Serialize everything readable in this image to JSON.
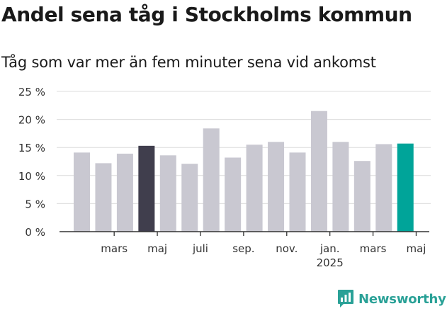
{
  "header": {
    "title": "Andel sena tåg i Stockholms kommun",
    "subtitle": "Tåg som var mer än fem minuter sena vid ankomst"
  },
  "colors": {
    "bar_default": "#c9c8d1",
    "bar_dark": "#403e4d",
    "bar_teal": "#00a499",
    "grid": "#dcdcdc",
    "axis": "#333333",
    "logo": "#2aa197"
  },
  "chart_data": {
    "type": "bar",
    "ylim": [
      0,
      25
    ],
    "yticks": [
      0,
      5,
      10,
      15,
      20,
      25
    ],
    "ytick_labels": [
      "0 %",
      "5 %",
      "10 %",
      "15 %",
      "20 %",
      "25 %"
    ],
    "grid": true,
    "values": [
      14.1,
      12.2,
      13.9,
      15.3,
      13.6,
      12.1,
      18.4,
      13.2,
      15.5,
      16.0,
      14.1,
      21.5,
      16.0,
      12.6,
      15.6,
      15.7
    ],
    "highlight": {
      "3": "bar_dark",
      "15": "bar_teal"
    },
    "xtick_labels": [
      {
        "index": 1.5,
        "lines": [
          "mars"
        ]
      },
      {
        "index": 3.5,
        "lines": [
          "maj"
        ]
      },
      {
        "index": 5.5,
        "lines": [
          "juli"
        ]
      },
      {
        "index": 7.5,
        "lines": [
          "sep."
        ]
      },
      {
        "index": 9.5,
        "lines": [
          "nov."
        ]
      },
      {
        "index": 11.5,
        "lines": [
          "jan.",
          "2025"
        ]
      },
      {
        "index": 13.5,
        "lines": [
          "mars"
        ]
      },
      {
        "index": 15.5,
        "lines": [
          "maj"
        ]
      }
    ]
  },
  "branding": {
    "logo_text": "Newsworthy",
    "logo_icon": "bar-chart-speech-bubble-icon"
  }
}
